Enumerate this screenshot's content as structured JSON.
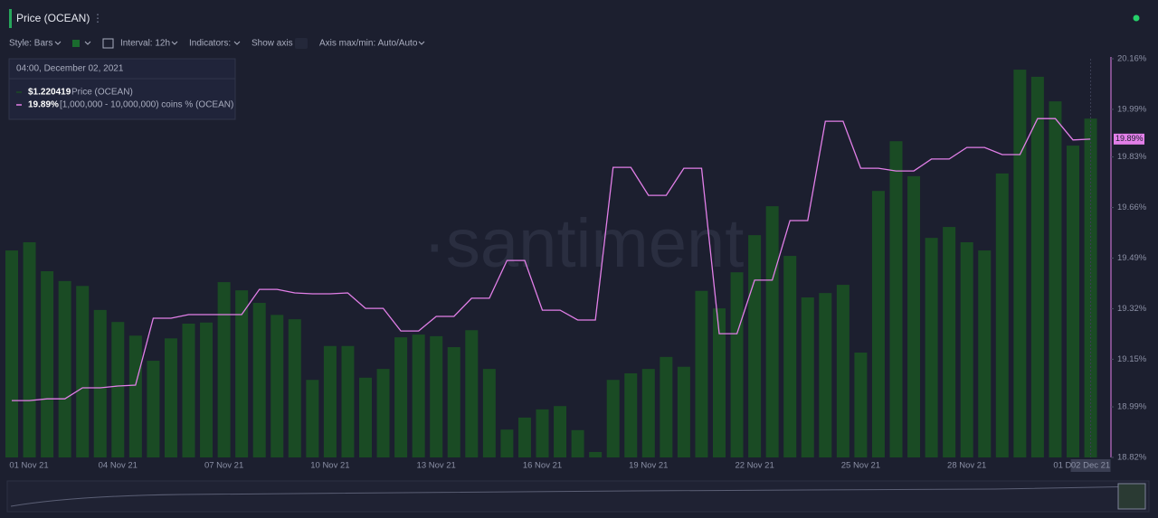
{
  "chart_data": {
    "type": "bar",
    "title": "Price (OCEAN)",
    "controls": [
      "Style: Bars",
      "Interval: 12h",
      "Indicators:",
      "Show axis",
      "Axis max/min: Auto/Auto"
    ],
    "watermark": "·santiment",
    "categories": [
      "01 Nov 21",
      null,
      null,
      null,
      null,
      null,
      "04 Nov 21",
      null,
      null,
      null,
      null,
      null,
      "07 Nov 21",
      null,
      null,
      null,
      null,
      null,
      "10 Nov 21",
      null,
      null,
      null,
      null,
      null,
      "13 Nov 21",
      null,
      null,
      null,
      null,
      null,
      "16 Nov 21",
      null,
      null,
      null,
      null,
      null,
      "19 Nov 21",
      null,
      null,
      null,
      null,
      null,
      "22 Nov 21",
      null,
      null,
      null,
      null,
      null,
      "25 Nov 21",
      null,
      null,
      null,
      null,
      null,
      "28 Nov 21",
      null,
      null,
      null,
      null,
      null,
      "01 Dec 21",
      null
    ],
    "ylim": [
      0.6,
      1.33
    ],
    "y2lim": [
      18.82,
      20.16
    ],
    "y2ticks": [
      {
        "value": 20.16,
        "label": "20.16%"
      },
      {
        "value": 19.99,
        "label": "19.99%"
      },
      {
        "value": 19.83,
        "label": "19.83%"
      },
      {
        "value": 19.66,
        "label": "19.66%"
      },
      {
        "value": 19.49,
        "label": "19.49%"
      },
      {
        "value": 19.32,
        "label": "19.32%"
      },
      {
        "value": 19.15,
        "label": "19.15%"
      },
      {
        "value": 18.99,
        "label": "18.99%"
      },
      {
        "value": 18.82,
        "label": "18.82%"
      }
    ],
    "series": [
      {
        "name": "Price (OCEAN)",
        "color": "#1a4b24",
        "type": "bar",
        "values": [
          0.979,
          0.994,
          0.941,
          0.923,
          0.914,
          0.87,
          0.848,
          0.823,
          0.777,
          0.818,
          0.845,
          0.847,
          0.921,
          0.906,
          0.883,
          0.861,
          0.853,
          0.742,
          0.804,
          0.804,
          0.746,
          0.762,
          0.82,
          0.825,
          0.822,
          0.802,
          0.833,
          0.762,
          0.651,
          0.673,
          0.688,
          0.694,
          0.65,
          0.61,
          0.742,
          0.754,
          0.762,
          0.784,
          0.766,
          0.905,
          0.873,
          0.939,
          1.007,
          1.06,
          0.969,
          0.893,
          0.901,
          0.916,
          0.792,
          1.088,
          1.179,
          1.115,
          1.002,
          1.022,
          0.994,
          0.979,
          1.12,
          1.31,
          1.297,
          1.252,
          1.171,
          1.220419
        ]
      },
      {
        "name": "[1,000,000 - 10,000,000) coins % (OCEAN)",
        "color": "#e27fe8",
        "type": "line",
        "axis": "y2",
        "values": [
          19.011,
          19.011,
          19.017,
          19.017,
          19.054,
          19.054,
          19.06,
          19.063,
          19.288,
          19.288,
          19.3,
          19.3,
          19.3,
          19.3,
          19.385,
          19.385,
          19.373,
          19.37,
          19.37,
          19.373,
          19.321,
          19.321,
          19.245,
          19.245,
          19.294,
          19.294,
          19.355,
          19.355,
          19.482,
          19.482,
          19.315,
          19.315,
          19.282,
          19.282,
          19.795,
          19.795,
          19.701,
          19.701,
          19.792,
          19.792,
          19.236,
          19.236,
          19.416,
          19.416,
          19.616,
          19.616,
          19.95,
          19.95,
          19.792,
          19.792,
          19.783,
          19.783,
          19.823,
          19.823,
          19.862,
          19.862,
          19.838,
          19.838,
          19.959,
          19.959,
          19.887,
          19.89
        ]
      }
    ],
    "y2_current_label": "19.89%",
    "crosshair_label": "02 Dec 21",
    "tooltip": {
      "title": "04:00, December 02, 2021",
      "price_label": "$1.220419",
      "percent_label": "19.89%"
    }
  }
}
